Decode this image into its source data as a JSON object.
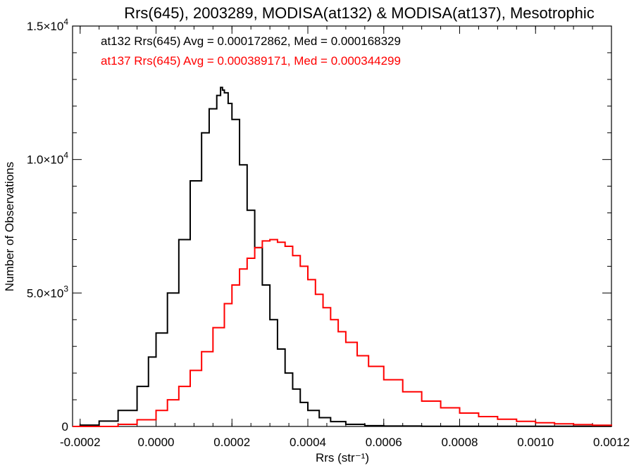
{
  "chart_data": {
    "type": "line",
    "step": true,
    "title": "Rrs(645), 2003289, MODISA(at132) & MODISA(at137), Mesotrophic",
    "xlabel": "Rrs (str⁻¹)",
    "ylabel": "Number of Observations",
    "xlim": [
      -0.00022,
      0.0012
    ],
    "ylim": [
      0,
      15000
    ],
    "grid": false,
    "x_ticks": [
      -0.0002,
      0.0,
      0.0002,
      0.0004,
      0.0006,
      0.0008,
      0.001,
      0.0012
    ],
    "x_tick_labels": [
      "-0.0002",
      "0.0000",
      "0.0002",
      "0.0004",
      "0.0006",
      "0.0008",
      "0.0010",
      "0.0012"
    ],
    "y_ticks": [
      {
        "value": 0,
        "mantissa": "0",
        "exponent": ""
      },
      {
        "value": 5000,
        "mantissa": "5.0×10",
        "exponent": "3"
      },
      {
        "value": 10000,
        "mantissa": "1.0×10",
        "exponent": "4"
      },
      {
        "value": 15000,
        "mantissa": "1.5×10",
        "exponent": "4"
      }
    ],
    "annotations": [
      {
        "text": "at132 Rrs(645) Avg = 0.000172862, Med = 0.000168329",
        "color": "#000000"
      },
      {
        "text": "at137 Rrs(645) Avg = 0.000389171, Med = 0.000344299",
        "color": "#ff0000"
      }
    ],
    "series": [
      {
        "color": "#000000",
        "x": [
          -0.00022,
          -0.0002,
          -0.00015,
          -0.0001,
          -5e-05,
          -2e-05,
          0.0,
          3e-05,
          6e-05,
          9e-05,
          0.00012,
          0.00014,
          0.00016,
          0.00017,
          0.000175,
          0.00018,
          0.00019,
          0.0002,
          0.00022,
          0.00024,
          0.00026,
          0.00028,
          0.0003,
          0.00032,
          0.00034,
          0.00036,
          0.00038,
          0.0004,
          0.00043,
          0.00046,
          0.0005,
          0.00055,
          0.0006,
          0.0007,
          0.0012
        ],
        "y": [
          0,
          50,
          200,
          600,
          1500,
          2600,
          3500,
          5000,
          7000,
          9200,
          11000,
          11900,
          12400,
          12700,
          12600,
          12500,
          12100,
          11500,
          9800,
          8100,
          6700,
          5300,
          4000,
          2900,
          2000,
          1400,
          900,
          600,
          330,
          180,
          80,
          30,
          15,
          5,
          0
        ]
      },
      {
        "color": "#ff0000",
        "x": [
          -0.00022,
          -0.0001,
          -5e-05,
          0.0,
          3e-05,
          6e-05,
          9e-05,
          0.00012,
          0.00015,
          0.00018,
          0.0002,
          0.00022,
          0.00024,
          0.00026,
          0.00028,
          0.0003,
          0.00032,
          0.00034,
          0.00036,
          0.00038,
          0.0004,
          0.00042,
          0.00044,
          0.00046,
          0.00048,
          0.0005,
          0.00053,
          0.00056,
          0.0006,
          0.00065,
          0.0007,
          0.00075,
          0.0008,
          0.00085,
          0.0009,
          0.00095,
          0.001,
          0.00105,
          0.0011,
          0.00115,
          0.0012
        ],
        "y": [
          0,
          80,
          250,
          600,
          1000,
          1500,
          2100,
          2800,
          3700,
          4600,
          5300,
          5900,
          6300,
          6700,
          6950,
          7000,
          6900,
          6750,
          6400,
          6000,
          5500,
          4950,
          4450,
          4000,
          3550,
          3150,
          2650,
          2250,
          1750,
          1300,
          950,
          700,
          500,
          370,
          270,
          190,
          140,
          100,
          70,
          45,
          20
        ]
      }
    ]
  }
}
